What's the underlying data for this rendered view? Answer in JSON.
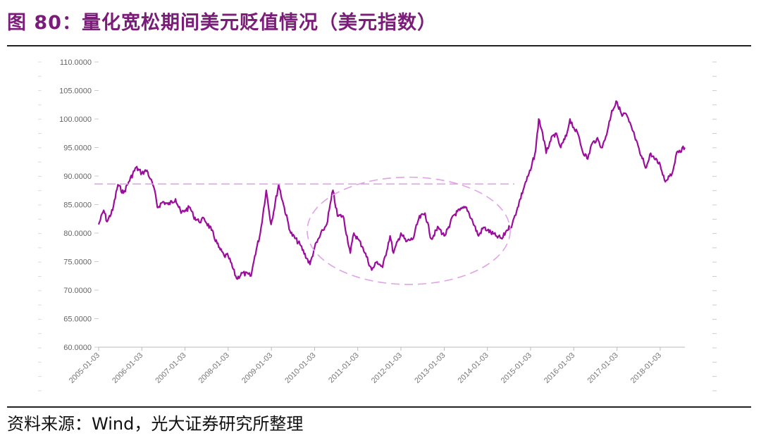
{
  "title": "图 80：量化宽松期间美元贬值情况（美元指数）",
  "source": "资料来源：Wind，光大证券研究所整理",
  "colors": {
    "line": "#9b0d9b",
    "reference": "#e2a2e8",
    "title": "#7a1d78"
  },
  "chart_data": {
    "type": "line",
    "title": "",
    "xlabel": "",
    "ylabel": "",
    "ylim": [
      60,
      110
    ],
    "y_ticks": [
      "110.0000",
      "105.0000",
      "100.0000",
      "95.0000",
      "90.0000",
      "85.0000",
      "80.0000",
      "75.0000",
      "70.0000",
      "65.0000",
      "60.0000"
    ],
    "x_ticks": [
      "2005-01-03",
      "2006-01-03",
      "2007-01-03",
      "2008-01-03",
      "2009-01-03",
      "2010-01-03",
      "2011-01-03",
      "2012-01-03",
      "2013-01-03",
      "2014-01-03",
      "2015-01-03",
      "2016-01-03",
      "2017-01-03",
      "2018-01-03"
    ],
    "xlim": [
      "2005-01-03",
      "2018-07-31"
    ],
    "grid": false,
    "series": [
      {
        "points": [
          [
            "2005-01-03",
            81.5
          ],
          [
            "2005-02-15",
            84.0
          ],
          [
            "2005-03-15",
            82.0
          ],
          [
            "2005-05-01",
            84.0
          ],
          [
            "2005-06-15",
            88.5
          ],
          [
            "2005-08-01",
            87.0
          ],
          [
            "2005-09-15",
            89.0
          ],
          [
            "2005-11-15",
            91.5
          ],
          [
            "2006-01-03",
            90.5
          ],
          [
            "2006-02-15",
            91.0
          ],
          [
            "2006-03-15",
            89.5
          ],
          [
            "2006-04-15",
            88.0
          ],
          [
            "2006-05-15",
            84.5
          ],
          [
            "2006-07-01",
            85.5
          ],
          [
            "2006-08-15",
            85.0
          ],
          [
            "2006-10-15",
            86.0
          ],
          [
            "2006-12-01",
            83.5
          ],
          [
            "2007-01-03",
            84.0
          ],
          [
            "2007-02-15",
            84.5
          ],
          [
            "2007-03-15",
            83.0
          ],
          [
            "2007-05-01",
            82.0
          ],
          [
            "2007-06-15",
            82.5
          ],
          [
            "2007-08-15",
            80.5
          ],
          [
            "2007-10-15",
            77.5
          ],
          [
            "2007-12-01",
            76.0
          ],
          [
            "2008-01-03",
            76.0
          ],
          [
            "2008-03-15",
            72.0
          ],
          [
            "2008-05-01",
            73.0
          ],
          [
            "2008-07-15",
            72.5
          ],
          [
            "2008-08-15",
            76.0
          ],
          [
            "2008-10-01",
            80.0
          ],
          [
            "2008-11-20",
            87.5
          ],
          [
            "2008-12-31",
            81.5
          ],
          [
            "2009-03-05",
            88.5
          ],
          [
            "2009-04-15",
            85.0
          ],
          [
            "2009-06-15",
            80.0
          ],
          [
            "2009-09-01",
            78.0
          ],
          [
            "2009-11-25",
            74.5
          ],
          [
            "2010-01-03",
            77.5
          ],
          [
            "2010-03-15",
            80.5
          ],
          [
            "2010-04-15",
            81.5
          ],
          [
            "2010-06-07",
            87.5
          ],
          [
            "2010-07-15",
            83.0
          ],
          [
            "2010-09-01",
            83.0
          ],
          [
            "2010-11-01",
            76.5
          ],
          [
            "2010-12-01",
            80.0
          ],
          [
            "2011-01-03",
            79.0
          ],
          [
            "2011-02-15",
            77.5
          ],
          [
            "2011-05-01",
            73.5
          ],
          [
            "2011-06-15",
            75.0
          ],
          [
            "2011-08-01",
            74.0
          ],
          [
            "2011-10-03",
            79.5
          ],
          [
            "2011-11-01",
            76.5
          ],
          [
            "2012-01-03",
            80.0
          ],
          [
            "2012-02-15",
            78.5
          ],
          [
            "2012-04-15",
            79.0
          ],
          [
            "2012-06-01",
            82.5
          ],
          [
            "2012-07-25",
            83.5
          ],
          [
            "2012-09-15",
            79.0
          ],
          [
            "2012-11-15",
            81.0
          ],
          [
            "2013-01-03",
            79.5
          ],
          [
            "2013-02-15",
            81.0
          ],
          [
            "2013-03-15",
            83.0
          ],
          [
            "2013-05-15",
            84.0
          ],
          [
            "2013-07-10",
            84.5
          ],
          [
            "2013-09-01",
            82.0
          ],
          [
            "2013-10-20",
            79.5
          ],
          [
            "2013-12-01",
            81.0
          ],
          [
            "2014-01-03",
            80.5
          ],
          [
            "2014-03-15",
            79.5
          ],
          [
            "2014-05-07",
            79.0
          ],
          [
            "2014-06-15",
            80.5
          ],
          [
            "2014-08-01",
            81.5
          ],
          [
            "2014-09-15",
            84.5
          ],
          [
            "2014-11-15",
            88.5
          ],
          [
            "2015-01-03",
            91.0
          ],
          [
            "2015-02-15",
            94.5
          ],
          [
            "2015-03-13",
            100.0
          ],
          [
            "2015-04-15",
            97.5
          ],
          [
            "2015-05-15",
            94.0
          ],
          [
            "2015-06-15",
            96.0
          ],
          [
            "2015-08-01",
            97.5
          ],
          [
            "2015-09-15",
            95.0
          ],
          [
            "2015-11-01",
            97.0
          ],
          [
            "2015-12-02",
            100.0
          ],
          [
            "2016-01-03",
            98.5
          ],
          [
            "2016-02-15",
            97.0
          ],
          [
            "2016-03-15",
            94.5
          ],
          [
            "2016-05-01",
            93.0
          ],
          [
            "2016-06-01",
            95.5
          ],
          [
            "2016-07-15",
            96.5
          ],
          [
            "2016-09-01",
            95.0
          ],
          [
            "2016-10-15",
            98.0
          ],
          [
            "2016-11-20",
            101.5
          ],
          [
            "2017-01-03",
            103.0
          ],
          [
            "2017-02-15",
            100.5
          ],
          [
            "2017-03-15",
            101.0
          ],
          [
            "2017-04-15",
            99.5
          ],
          [
            "2017-06-01",
            97.0
          ],
          [
            "2017-07-15",
            94.0
          ],
          [
            "2017-09-08",
            91.5
          ],
          [
            "2017-10-15",
            94.0
          ],
          [
            "2017-11-15",
            93.0
          ],
          [
            "2018-01-03",
            92.0
          ],
          [
            "2018-02-15",
            89.0
          ],
          [
            "2018-03-15",
            90.0
          ],
          [
            "2018-04-15",
            90.5
          ],
          [
            "2018-05-15",
            93.5
          ],
          [
            "2018-06-15",
            94.5
          ],
          [
            "2018-07-31",
            95.0
          ]
        ]
      }
    ]
  }
}
